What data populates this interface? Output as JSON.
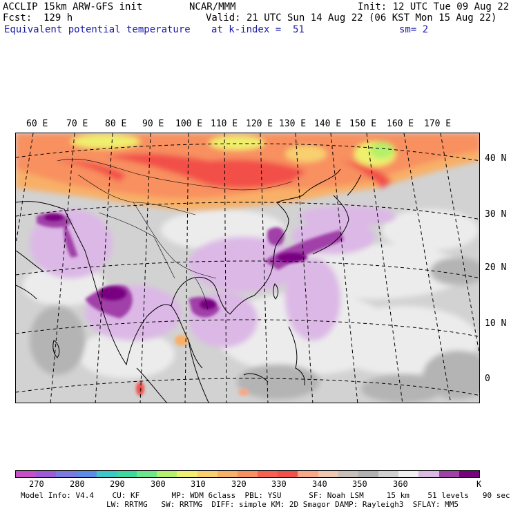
{
  "header": {
    "model": "ACCLIP 15km ARW-GFS init",
    "center": "NCAR/MMM",
    "init": "Init: 12 UTC Tue 09 Aug 22",
    "fcst": "Fcst:  129 h",
    "valid": "Valid: 21 UTC Sun 14 Aug 22 (06 KST Mon 15 Aug 22)",
    "field": "Equivalent potential temperature",
    "level": "at k-index =  51",
    "smooth": "sm= 2"
  },
  "map": {
    "lon_labels": [
      "60 E",
      "70 E",
      "80 E",
      "90 E",
      "100 E",
      "110 E",
      "120 E",
      "130 E",
      "140 E",
      "150 E",
      "160 E",
      "170 E"
    ],
    "lat_labels": [
      "40 N",
      "30 N",
      "20 N",
      "10 N",
      "0"
    ]
  },
  "colorbar": {
    "colors": [
      "#c94fc9",
      "#a05ad8",
      "#7a7ae0",
      "#5c8ce6",
      "#3cc8c8",
      "#3cd8a0",
      "#6ae88a",
      "#b4f06a",
      "#f0f06e",
      "#f8d070",
      "#f8b068",
      "#f89060",
      "#f86050",
      "#f25048",
      "#f8a888",
      "#f0c8b0",
      "#c8c0b8",
      "#b0b0b0",
      "#d0d0d0",
      "#f0f0f0",
      "#dcb8e6",
      "#a040a8",
      "#780080"
    ],
    "tick_labels": [
      "270",
      "280",
      "290",
      "300",
      "310",
      "320",
      "330",
      "340",
      "350",
      "360",
      "K"
    ]
  },
  "footer": {
    "line1": "Model Info: V4.4    CU: KF       MP: WDM 6class  PBL: YSU      SF: Noah LSM     15 km    51 levels   90 sec",
    "line2": "LW: RRTMG   SW: RRTMG  DIFF: simple KM: 2D Smagor DAMP: Rayleigh3  SFLAY: MM5"
  }
}
